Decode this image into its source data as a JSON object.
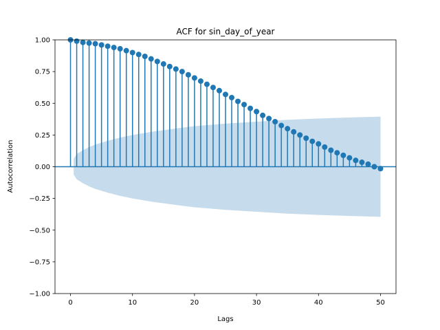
{
  "chart_data": {
    "type": "stem",
    "title": "ACF for sin_day_of_year",
    "xlabel": "Lags",
    "ylabel": "Autocorrelation",
    "xlim": [
      -2.5,
      52.5
    ],
    "ylim": [
      -1.0,
      1.0
    ],
    "xticks": [
      0,
      10,
      20,
      30,
      40,
      50
    ],
    "xtick_labels": [
      "0",
      "10",
      "20",
      "30",
      "40",
      "50"
    ],
    "yticks": [
      -1.0,
      -0.75,
      -0.5,
      -0.25,
      0.0,
      0.25,
      0.5,
      0.75,
      1.0
    ],
    "ytick_labels": [
      "−1.00",
      "−0.75",
      "−0.50",
      "−0.25",
      "0.00",
      "0.25",
      "0.50",
      "0.75",
      "1.00"
    ],
    "grid": false,
    "colors": {
      "stem": "#1f77b4",
      "confidence_band": "#c6dcec"
    },
    "lags": [
      0,
      1,
      2,
      3,
      4,
      5,
      6,
      7,
      8,
      9,
      10,
      11,
      12,
      13,
      14,
      15,
      16,
      17,
      18,
      19,
      20,
      21,
      22,
      23,
      24,
      25,
      26,
      27,
      28,
      29,
      30,
      31,
      32,
      33,
      34,
      35,
      36,
      37,
      38,
      39,
      40,
      41,
      42,
      43,
      44,
      45,
      46,
      47,
      48,
      49,
      50
    ],
    "values": [
      1.0,
      0.99,
      0.98,
      0.975,
      0.97,
      0.96,
      0.95,
      0.94,
      0.93,
      0.915,
      0.9,
      0.885,
      0.87,
      0.85,
      0.83,
      0.81,
      0.79,
      0.77,
      0.75,
      0.725,
      0.7,
      0.675,
      0.65,
      0.625,
      0.6,
      0.57,
      0.545,
      0.515,
      0.49,
      0.46,
      0.435,
      0.405,
      0.38,
      0.355,
      0.325,
      0.3,
      0.275,
      0.25,
      0.225,
      0.2,
      0.18,
      0.155,
      0.13,
      0.11,
      0.09,
      0.07,
      0.05,
      0.035,
      0.02,
      0.0,
      -0.015
    ],
    "confidence_band": {
      "lags": [
        0,
        1,
        2,
        3,
        4,
        6,
        8,
        10,
        13,
        16,
        20,
        25,
        30,
        35,
        40,
        45,
        50
      ],
      "upper": [
        0.06,
        0.1,
        0.13,
        0.155,
        0.175,
        0.205,
        0.23,
        0.25,
        0.275,
        0.295,
        0.32,
        0.34,
        0.355,
        0.37,
        0.38,
        0.388,
        0.395
      ],
      "lower": [
        -0.06,
        -0.1,
        -0.13,
        -0.155,
        -0.175,
        -0.205,
        -0.23,
        -0.25,
        -0.275,
        -0.295,
        -0.32,
        -0.34,
        -0.355,
        -0.37,
        -0.38,
        -0.388,
        -0.395
      ]
    }
  }
}
